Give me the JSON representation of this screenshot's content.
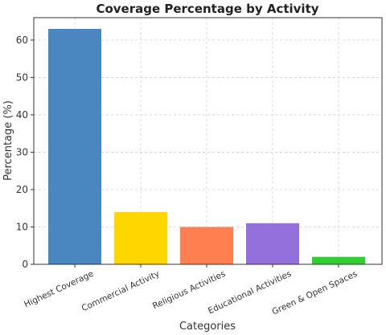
{
  "chart_data": {
    "type": "bar",
    "title": "Coverage Percentage by Activity",
    "xlabel": "Categories",
    "ylabel": "Percentage (%)",
    "categories": [
      "Highest Coverage",
      "Commercial Activity",
      "Religious Activities",
      "Educational Activities",
      "Green & Open Spaces"
    ],
    "values": [
      63,
      14,
      10,
      11,
      2
    ],
    "colors": [
      "#4a86bf",
      "#ffd600",
      "#ff7f50",
      "#9370db",
      "#32cd32"
    ],
    "ylim": [
      0,
      66
    ],
    "yticks": [
      0,
      10,
      20,
      30,
      40,
      50,
      60
    ],
    "grid": true,
    "legend": "none"
  }
}
